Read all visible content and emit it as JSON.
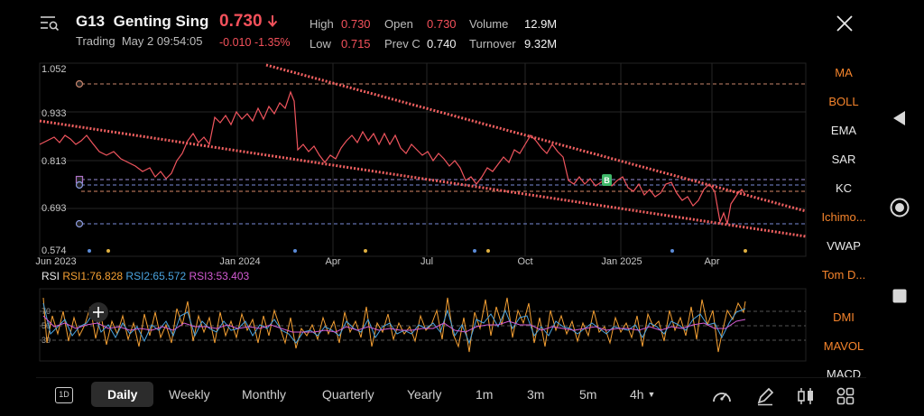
{
  "header": {
    "symbol": "G13",
    "name": "Genting Sing",
    "status": "Trading",
    "timestamp": "May 2 09:54:05",
    "price": "0.730",
    "change": "-0.010",
    "change_pct": "-1.35%"
  },
  "stats": {
    "high_label": "High",
    "high_value": "0.730",
    "low_label": "Low",
    "low_value": "0.715",
    "open_label": "Open",
    "open_value": "0.730",
    "prevc_label": "Prev C",
    "prevc_value": "0.740",
    "volume_label": "Volume",
    "volume_value": "12.9M",
    "turnover_label": "Turnover",
    "turnover_value": "9.32M"
  },
  "price_chart": {
    "y_ticks": [
      "1.052",
      "0.933",
      "0.813",
      "0.693",
      "0.574"
    ],
    "x_ticks": [
      "Jun 2023",
      "Jan 2024",
      "Apr",
      "Jul",
      "Oct",
      "Jan 2025",
      "Apr"
    ],
    "marker_label": "B"
  },
  "rsi": {
    "title": "RSI",
    "rsi1": "RSI1:76.828",
    "rsi2": "RSI2:65.572",
    "rsi3": "RSI3:53.403",
    "levels": [
      "70",
      "50",
      "30"
    ]
  },
  "indicators": [
    "MA",
    "BOLL",
    "EMA",
    "SAR",
    "KC",
    "Ichimo...",
    "VWAP",
    "Tom D...",
    "DMI",
    "MAVOL",
    "MACD"
  ],
  "bottom": {
    "period_btn": "1D",
    "tabs": [
      "Daily",
      "Weekly",
      "Monthly",
      "Quarterly",
      "Yearly",
      "1m",
      "3m",
      "5m",
      "4h"
    ]
  },
  "colors": {
    "down": "#f4515b",
    "accent": "#f5842c",
    "rsi1": "#f5a033",
    "rsi2": "#4aa3df",
    "rsi3": "#d35bd3"
  }
}
